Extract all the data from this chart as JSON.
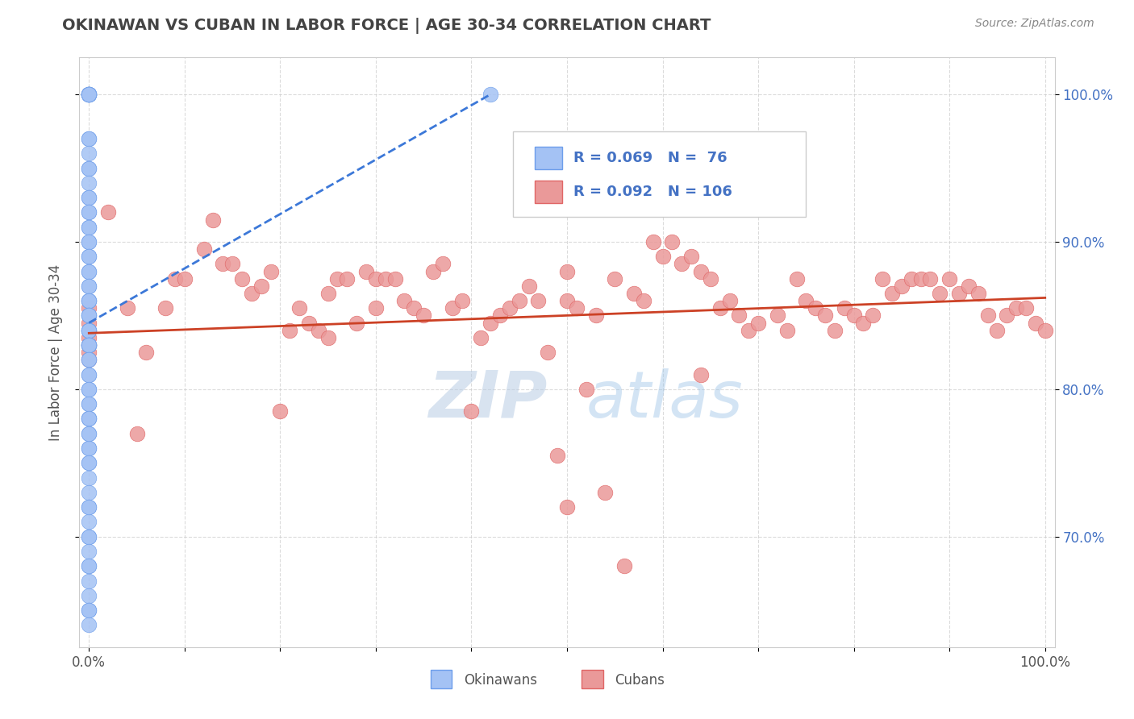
{
  "title": "OKINAWAN VS CUBAN IN LABOR FORCE | AGE 30-34 CORRELATION CHART",
  "source": "Source: ZipAtlas.com",
  "ylabel": "In Labor Force | Age 30-34",
  "xlim": [
    -0.01,
    1.01
  ],
  "ylim": [
    0.625,
    1.025
  ],
  "y_ticks": [
    0.7,
    0.8,
    0.9,
    1.0
  ],
  "y_tick_labels": [
    "70.0%",
    "80.0%",
    "90.0%",
    "100.0%"
  ],
  "x_ticks": [
    0.0,
    0.1,
    0.2,
    0.3,
    0.4,
    0.5,
    0.6,
    0.7,
    0.8,
    0.9,
    1.0
  ],
  "x_tick_labels": [
    "0.0%",
    "",
    "",
    "",
    "",
    "",
    "",
    "",
    "",
    "",
    "100.0%"
  ],
  "okinawan_color": "#a4c2f4",
  "cuban_color": "#ea9999",
  "okinawan_edge_color": "#6d9eeb",
  "cuban_edge_color": "#e06666",
  "okinawan_trend_color": "#3c78d8",
  "cuban_trend_color": "#cc4125",
  "R_okinawan": 0.069,
  "N_okinawan": 76,
  "R_cuban": 0.092,
  "N_cuban": 106,
  "watermark_zip_color": "#b8cce4",
  "watermark_atlas_color": "#9fc5e8",
  "background_color": "#ffffff",
  "grid_color": "#cccccc",
  "okinawan_x": [
    0.0,
    0.0,
    0.0,
    0.0,
    0.0,
    0.0,
    0.0,
    0.0,
    0.0,
    0.0,
    0.0,
    0.0,
    0.0,
    0.0,
    0.0,
    0.0,
    0.0,
    0.0,
    0.0,
    0.0,
    0.0,
    0.0,
    0.0,
    0.0,
    0.0,
    0.0,
    0.0,
    0.0,
    0.0,
    0.0,
    0.0,
    0.0,
    0.0,
    0.0,
    0.0,
    0.0,
    0.0,
    0.0,
    0.0,
    0.0,
    0.0,
    0.0,
    0.0,
    0.0,
    0.0,
    0.0,
    0.0,
    0.0,
    0.0,
    0.0,
    0.0,
    0.0,
    0.0,
    0.0,
    0.0,
    0.0,
    0.0,
    0.0,
    0.0,
    0.0,
    0.0,
    0.0,
    0.0,
    0.0,
    0.0,
    0.0,
    0.0,
    0.0,
    0.0,
    0.0,
    0.0,
    0.0,
    0.0,
    0.0,
    0.0,
    0.42
  ],
  "okinawan_y": [
    1.0,
    1.0,
    1.0,
    1.0,
    1.0,
    1.0,
    1.0,
    1.0,
    0.97,
    0.97,
    0.96,
    0.95,
    0.95,
    0.94,
    0.93,
    0.93,
    0.92,
    0.92,
    0.91,
    0.91,
    0.9,
    0.9,
    0.89,
    0.89,
    0.88,
    0.88,
    0.87,
    0.87,
    0.86,
    0.86,
    0.86,
    0.85,
    0.85,
    0.85,
    0.84,
    0.84,
    0.84,
    0.84,
    0.83,
    0.83,
    0.83,
    0.83,
    0.83,
    0.82,
    0.82,
    0.81,
    0.8,
    0.79,
    0.78,
    0.77,
    0.76,
    0.76,
    0.75,
    0.74,
    0.73,
    0.72,
    0.71,
    0.7,
    0.7,
    0.69,
    0.68,
    0.67,
    0.66,
    0.65,
    0.65,
    0.64,
    0.68,
    0.72,
    0.75,
    0.78,
    0.81,
    0.8,
    0.79,
    0.78,
    0.77,
    1.0
  ],
  "cuban_x": [
    0.0,
    0.0,
    0.0,
    0.0,
    0.0,
    0.0,
    0.02,
    0.04,
    0.05,
    0.06,
    0.08,
    0.09,
    0.1,
    0.12,
    0.13,
    0.14,
    0.15,
    0.16,
    0.17,
    0.18,
    0.19,
    0.2,
    0.21,
    0.22,
    0.23,
    0.24,
    0.25,
    0.25,
    0.26,
    0.27,
    0.28,
    0.29,
    0.3,
    0.3,
    0.31,
    0.32,
    0.33,
    0.34,
    0.35,
    0.36,
    0.37,
    0.38,
    0.39,
    0.4,
    0.41,
    0.42,
    0.43,
    0.44,
    0.45,
    0.46,
    0.47,
    0.48,
    0.49,
    0.5,
    0.5,
    0.51,
    0.53,
    0.55,
    0.57,
    0.58,
    0.59,
    0.6,
    0.61,
    0.62,
    0.63,
    0.64,
    0.65,
    0.66,
    0.67,
    0.68,
    0.69,
    0.7,
    0.72,
    0.73,
    0.74,
    0.75,
    0.76,
    0.77,
    0.78,
    0.79,
    0.8,
    0.81,
    0.82,
    0.83,
    0.84,
    0.85,
    0.86,
    0.87,
    0.88,
    0.89,
    0.9,
    0.91,
    0.92,
    0.93,
    0.94,
    0.95,
    0.96,
    0.97,
    0.98,
    0.99,
    1.0,
    0.5,
    0.52,
    0.54,
    0.56,
    0.64
  ],
  "cuban_y": [
    0.855,
    0.845,
    0.835,
    0.83,
    0.825,
    0.82,
    0.92,
    0.855,
    0.77,
    0.825,
    0.855,
    0.875,
    0.875,
    0.895,
    0.915,
    0.885,
    0.885,
    0.875,
    0.865,
    0.87,
    0.88,
    0.785,
    0.84,
    0.855,
    0.845,
    0.84,
    0.835,
    0.865,
    0.875,
    0.875,
    0.845,
    0.88,
    0.875,
    0.855,
    0.875,
    0.875,
    0.86,
    0.855,
    0.85,
    0.88,
    0.885,
    0.855,
    0.86,
    0.785,
    0.835,
    0.845,
    0.85,
    0.855,
    0.86,
    0.87,
    0.86,
    0.825,
    0.755,
    0.88,
    0.86,
    0.855,
    0.85,
    0.875,
    0.865,
    0.86,
    0.9,
    0.89,
    0.9,
    0.885,
    0.89,
    0.88,
    0.875,
    0.855,
    0.86,
    0.85,
    0.84,
    0.845,
    0.85,
    0.84,
    0.875,
    0.86,
    0.855,
    0.85,
    0.84,
    0.855,
    0.85,
    0.845,
    0.85,
    0.875,
    0.865,
    0.87,
    0.875,
    0.875,
    0.875,
    0.865,
    0.875,
    0.865,
    0.87,
    0.865,
    0.85,
    0.84,
    0.85,
    0.855,
    0.855,
    0.845,
    0.84,
    0.72,
    0.8,
    0.73,
    0.68,
    0.81
  ],
  "oki_trend_x0": 0.0,
  "oki_trend_x1": 0.42,
  "oki_trend_y0": 0.845,
  "oki_trend_y1": 1.0,
  "cub_trend_x0": 0.0,
  "cub_trend_x1": 1.0,
  "cub_trend_y0": 0.838,
  "cub_trend_y1": 0.862
}
